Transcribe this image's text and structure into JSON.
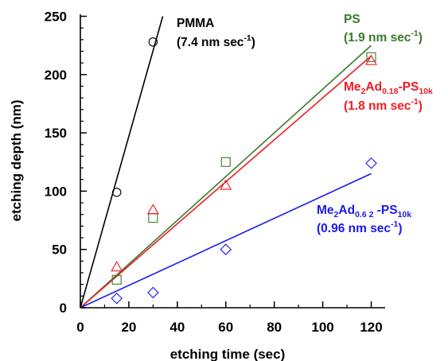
{
  "chart_data": {
    "type": "scatter",
    "xlabel": "etching time (sec)",
    "ylabel": "etching depth (nm)",
    "xlim": [
      0,
      125
    ],
    "ylim": [
      0,
      250
    ],
    "x_ticks": [
      0,
      20,
      40,
      60,
      80,
      100,
      120
    ],
    "y_ticks": [
      0,
      50,
      100,
      150,
      200,
      250
    ],
    "grid": false,
    "legend": "none",
    "series": [
      {
        "marker": "circle",
        "color": "#000000",
        "points": [
          [
            15,
            99
          ],
          [
            30,
            228
          ]
        ],
        "fit_line": [
          [
            0,
            0
          ],
          [
            34,
            250
          ]
        ],
        "label_parts": [
          {
            "t": "PMMA"
          }
        ],
        "rate_parts": [
          {
            "t": "(7.4 nm sec"
          },
          {
            "t": "-1",
            "sup": true
          },
          {
            "t": ")"
          }
        ]
      },
      {
        "marker": "square",
        "color": "#3a7a28",
        "points": [
          [
            15,
            24
          ],
          [
            30,
            77
          ],
          [
            60,
            125
          ],
          [
            120,
            215
          ]
        ],
        "fit_line": [
          [
            0,
            0
          ],
          [
            120,
            225
          ]
        ],
        "label_parts": [
          {
            "t": "PS"
          }
        ],
        "rate_parts": [
          {
            "t": "(1.9 nm sec"
          },
          {
            "t": "-1",
            "sup": true
          },
          {
            "t": ")"
          }
        ]
      },
      {
        "marker": "triangle",
        "color": "#ee1c25",
        "points": [
          [
            15,
            35
          ],
          [
            30,
            84
          ],
          [
            60,
            105
          ],
          [
            120,
            212
          ]
        ],
        "fit_line": [
          [
            0,
            0
          ],
          [
            120,
            216
          ]
        ],
        "label_parts": [
          {
            "t": "Me"
          },
          {
            "t": "2",
            "sub": true
          },
          {
            "t": "Ad"
          },
          {
            "t": "0.18",
            "sub": true
          },
          {
            "t": "-PS"
          },
          {
            "t": "10k",
            "sub": true
          }
        ],
        "rate_parts": [
          {
            "t": "(1.8 nm sec"
          },
          {
            "t": "-1",
            "sup": true
          },
          {
            "t": ")"
          }
        ]
      },
      {
        "marker": "diamond",
        "color": "#1a1aee",
        "points": [
          [
            15,
            8
          ],
          [
            30,
            13
          ],
          [
            60,
            50
          ],
          [
            120,
            124
          ]
        ],
        "fit_line": [
          [
            0,
            0
          ],
          [
            120,
            115
          ]
        ],
        "label_parts": [
          {
            "t": "Me"
          },
          {
            "t": "2",
            "sub": true
          },
          {
            "t": "Ad"
          },
          {
            "t": "0.6 2",
            "sub": true
          },
          {
            "t": " -PS"
          },
          {
            "t": "10k",
            "sub": true
          }
        ],
        "rate_parts": [
          {
            "t": "(0.96 nm sec"
          },
          {
            "t": "-1",
            "sup": true
          },
          {
            "t": ")"
          }
        ]
      }
    ]
  }
}
